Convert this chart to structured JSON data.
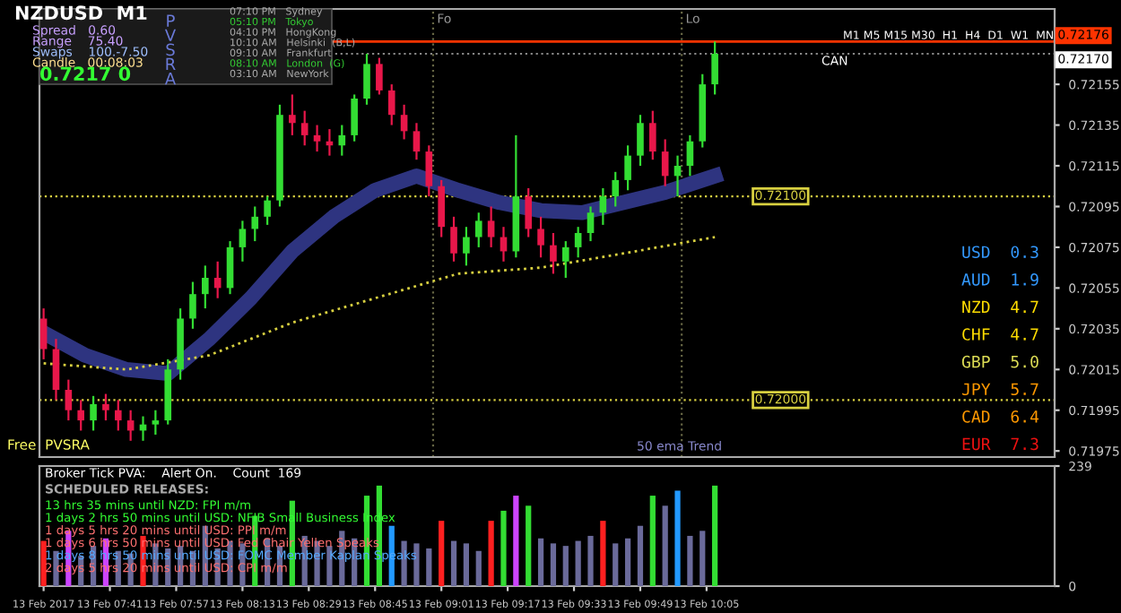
{
  "chart_data": [
    {
      "type": "candlestick",
      "x": [
        "2017-02-13T07:25",
        "2017-02-13T07:28",
        "2017-02-13T07:31",
        "2017-02-13T07:34",
        "2017-02-13T07:37",
        "2017-02-13T07:40",
        "2017-02-13T07:43",
        "2017-02-13T07:46",
        "2017-02-13T07:49",
        "2017-02-13T07:52",
        "2017-02-13T07:55",
        "2017-02-13T07:58",
        "2017-02-13T08:01",
        "2017-02-13T08:04",
        "2017-02-13T08:07",
        "2017-02-13T08:10",
        "2017-02-13T08:13",
        "2017-02-13T08:16",
        "2017-02-13T08:19",
        "2017-02-13T08:22",
        "2017-02-13T08:25",
        "2017-02-13T08:28",
        "2017-02-13T08:31",
        "2017-02-13T08:34",
        "2017-02-13T08:37",
        "2017-02-13T08:40",
        "2017-02-13T08:43",
        "2017-02-13T08:46",
        "2017-02-13T08:49",
        "2017-02-13T08:52",
        "2017-02-13T08:55",
        "2017-02-13T08:58",
        "2017-02-13T09:01",
        "2017-02-13T09:04",
        "2017-02-13T09:07",
        "2017-02-13T09:10",
        "2017-02-13T09:13",
        "2017-02-13T09:16",
        "2017-02-13T09:19",
        "2017-02-13T09:22",
        "2017-02-13T09:25",
        "2017-02-13T09:28",
        "2017-02-13T09:31",
        "2017-02-13T09:34",
        "2017-02-13T09:37",
        "2017-02-13T09:40",
        "2017-02-13T09:43",
        "2017-02-13T09:46",
        "2017-02-13T09:49",
        "2017-02-13T09:52",
        "2017-02-13T09:55",
        "2017-02-13T09:58",
        "2017-02-13T10:01",
        "2017-02-13T10:04",
        "2017-02-13T10:07"
      ],
      "ohlc": [
        [
          0.7204,
          0.72045,
          0.7202,
          0.72025
        ],
        [
          0.72025,
          0.7203,
          0.72,
          0.72005
        ],
        [
          0.72005,
          0.7201,
          0.7199,
          0.71995
        ],
        [
          0.71995,
          0.72,
          0.71985,
          0.7199
        ],
        [
          0.7199,
          0.72002,
          0.71985,
          0.71998
        ],
        [
          0.71998,
          0.72003,
          0.7199,
          0.71995
        ],
        [
          0.71995,
          0.72,
          0.71985,
          0.7199
        ],
        [
          0.7199,
          0.71995,
          0.7198,
          0.71985
        ],
        [
          0.71985,
          0.71992,
          0.7198,
          0.71988
        ],
        [
          0.71988,
          0.71995,
          0.71983,
          0.7199
        ],
        [
          0.7199,
          0.7202,
          0.71988,
          0.72015
        ],
        [
          0.72015,
          0.72045,
          0.7201,
          0.7204
        ],
        [
          0.7204,
          0.72058,
          0.72035,
          0.72052
        ],
        [
          0.72052,
          0.72066,
          0.72045,
          0.7206
        ],
        [
          0.7206,
          0.72068,
          0.7205,
          0.72055
        ],
        [
          0.72055,
          0.72078,
          0.72052,
          0.72075
        ],
        [
          0.72075,
          0.72088,
          0.72068,
          0.72084
        ],
        [
          0.72084,
          0.72095,
          0.72078,
          0.7209
        ],
        [
          0.7209,
          0.721,
          0.72086,
          0.72098
        ],
        [
          0.72098,
          0.72145,
          0.72095,
          0.7214
        ],
        [
          0.7214,
          0.7215,
          0.7213,
          0.72136
        ],
        [
          0.72136,
          0.72142,
          0.72125,
          0.7213
        ],
        [
          0.7213,
          0.72135,
          0.72122,
          0.72127
        ],
        [
          0.72127,
          0.72133,
          0.7212,
          0.72125
        ],
        [
          0.72125,
          0.72135,
          0.7212,
          0.7213
        ],
        [
          0.7213,
          0.7215,
          0.72127,
          0.72148
        ],
        [
          0.72148,
          0.7217,
          0.72145,
          0.72165
        ],
        [
          0.72165,
          0.72168,
          0.7215,
          0.72152
        ],
        [
          0.72152,
          0.72155,
          0.72135,
          0.7214
        ],
        [
          0.7214,
          0.72145,
          0.72128,
          0.72132
        ],
        [
          0.72132,
          0.72136,
          0.72118,
          0.72122
        ],
        [
          0.72122,
          0.72125,
          0.721,
          0.72105
        ],
        [
          0.72105,
          0.72108,
          0.7208,
          0.72085
        ],
        [
          0.72085,
          0.7209,
          0.72068,
          0.72072
        ],
        [
          0.72072,
          0.72085,
          0.72066,
          0.7208
        ],
        [
          0.7208,
          0.72092,
          0.72075,
          0.72088
        ],
        [
          0.72088,
          0.72095,
          0.72075,
          0.7208
        ],
        [
          0.7208,
          0.72085,
          0.72068,
          0.72073
        ],
        [
          0.72073,
          0.7213,
          0.7207,
          0.721
        ],
        [
          0.721,
          0.72104,
          0.7208,
          0.72084
        ],
        [
          0.72084,
          0.7209,
          0.7207,
          0.72076
        ],
        [
          0.72076,
          0.72082,
          0.72062,
          0.72068
        ],
        [
          0.72068,
          0.72078,
          0.7206,
          0.72075
        ],
        [
          0.72075,
          0.72085,
          0.7207,
          0.72082
        ],
        [
          0.72082,
          0.72095,
          0.72078,
          0.72092
        ],
        [
          0.72092,
          0.72104,
          0.72086,
          0.721
        ],
        [
          0.721,
          0.72112,
          0.72095,
          0.72108
        ],
        [
          0.72108,
          0.72125,
          0.72103,
          0.7212
        ],
        [
          0.7212,
          0.7214,
          0.72115,
          0.72136
        ],
        [
          0.72136,
          0.72142,
          0.72118,
          0.72122
        ],
        [
          0.72122,
          0.72128,
          0.72105,
          0.7211
        ],
        [
          0.7211,
          0.7212,
          0.721,
          0.72115
        ],
        [
          0.72115,
          0.7213,
          0.7211,
          0.72127
        ],
        [
          0.72127,
          0.7216,
          0.72124,
          0.72155
        ],
        [
          0.72155,
          0.72176,
          0.7215,
          0.7217
        ]
      ],
      "colors": [
        "#e8174a",
        "#e8174a",
        "#e8174a",
        "#e8174a",
        "#33dd33",
        "#e8174a",
        "#e8174a",
        "#e8174a",
        "#33dd33",
        "#33dd33",
        "#33dd33",
        "#33dd33",
        "#33dd33",
        "#33dd33",
        "#e8174a",
        "#33dd33",
        "#33dd33",
        "#33dd33",
        "#33dd33",
        "#33dd33",
        "#e8174a",
        "#e8174a",
        "#e8174a",
        "#e8174a",
        "#33dd33",
        "#33dd33",
        "#33dd33",
        "#e8174a",
        "#e8174a",
        "#e8174a",
        "#e8174a",
        "#e8174a",
        "#e8174a",
        "#e8174a",
        "#33dd33",
        "#33dd33",
        "#e8174a",
        "#e8174a",
        "#33dd33",
        "#e8174a",
        "#e8174a",
        "#e8174a",
        "#33dd33",
        "#33dd33",
        "#33dd33",
        "#33dd33",
        "#33dd33",
        "#33dd33",
        "#33dd33",
        "#e8174a",
        "#e8174a",
        "#33dd33",
        "#33dd33",
        "#33dd33",
        "#33dd33"
      ],
      "series": [
        {
          "type": "line",
          "color": "#2e3480",
          "x": [
            "2017-02-13T07:25",
            "2017-02-13T07:35",
            "2017-02-13T07:45",
            "2017-02-13T07:55",
            "2017-02-13T08:05",
            "2017-02-13T08:15",
            "2017-02-13T08:25",
            "2017-02-13T08:35",
            "2017-02-13T08:45",
            "2017-02-13T08:55",
            "2017-02-13T09:05",
            "2017-02-13T09:15",
            "2017-02-13T09:25",
            "2017-02-13T09:35",
            "2017-02-13T09:45",
            "2017-02-13T09:55",
            "2017-02-13T10:07"
          ],
          "values": [
            0.72033,
            0.72022,
            0.72015,
            0.72013,
            0.7203,
            0.7205,
            0.72073,
            0.7209,
            0.72103,
            0.7211,
            0.72103,
            0.72097,
            0.72093,
            0.72092,
            0.72097,
            0.72102,
            0.7211
          ],
          "line_style": "solid"
        },
        {
          "type": "line",
          "color": "#d8d040",
          "x": [
            "2017-02-13T07:25",
            "2017-02-13T07:45",
            "2017-02-13T08:05",
            "2017-02-13T08:25",
            "2017-02-13T08:45",
            "2017-02-13T09:05",
            "2017-02-13T09:25",
            "2017-02-13T09:45",
            "2017-02-13T10:07"
          ],
          "values": [
            0.72018,
            0.72015,
            0.72022,
            0.72038,
            0.7205,
            0.72062,
            0.72065,
            0.72072,
            0.7208
          ],
          "line_style": "dotted"
        }
      ],
      "xlim": [
        "2017-02-13T07:24",
        "2017-02-13T11:29"
      ],
      "ylim": [
        0.71972,
        0.72192
      ],
      "yticks": [
        0.72155,
        0.72135,
        0.72115,
        0.72095,
        0.72075,
        0.72055,
        0.72035,
        0.72015,
        0.71995,
        0.71975
      ],
      "tick_labels": "y",
      "grid": false,
      "ref_lines": [
        {
          "axis": "y",
          "value": 0.72176,
          "label": "0.72176",
          "color": "#ff3300",
          "line_style": "solid"
        },
        {
          "axis": "y",
          "value": 0.7217,
          "label": "0.72170",
          "color": "#888888",
          "line_style": "dotted"
        },
        {
          "axis": "y",
          "value": 0.721,
          "label": "0.72100",
          "color": "#d8d040",
          "line_style": "dotted"
        },
        {
          "axis": "y",
          "value": 0.72,
          "label": "0.72000",
          "color": "#d8d040",
          "line_style": "dotted"
        },
        {
          "axis": "x",
          "value": "2017-02-13T08:59",
          "label": "Fo",
          "color": "#666644",
          "line_style": "dotted"
        },
        {
          "axis": "x",
          "value": "2017-02-13T09:59",
          "label": "Lo",
          "color": "#666644",
          "line_style": "dotted"
        }
      ],
      "annotations": [
        "NZDUSD  M1",
        "Spread   0.60",
        "Range    75.40",
        "Swaps    100.-7.50",
        "Candle   00:08:03",
        "0.7217 0",
        "PVSRA",
        "07:10 PM   Sydney",
        "05:10 PM   Tokyo",
        "04:10 PM   HongKong",
        "10:10 AM   Helsinki  (B,L)",
        "09:10 AM   Frankfurt",
        "08:10 AM   London  (G)",
        "03:10 AM   NewYork",
        "M1 M5 M15 M30  H1  H4  D1  W1  MN",
        "CAN",
        "Free  PVSRA",
        "50 ema Trend",
        "USD  0.3",
        "AUD  1.9",
        "NZD  4.7",
        "CHF  4.7",
        "GBP  5.0",
        "JPY  5.7",
        "CAD  6.4",
        "EUR  7.3"
      ]
    },
    {
      "type": "bar",
      "x": [
        "2017-02-13T07:25",
        "2017-02-13T07:28",
        "2017-02-13T07:31",
        "2017-02-13T07:34",
        "2017-02-13T07:37",
        "2017-02-13T07:40",
        "2017-02-13T07:43",
        "2017-02-13T07:46",
        "2017-02-13T07:49",
        "2017-02-13T07:52",
        "2017-02-13T07:55",
        "2017-02-13T07:58",
        "2017-02-13T08:01",
        "2017-02-13T08:04",
        "2017-02-13T08:07",
        "2017-02-13T08:10",
        "2017-02-13T08:13",
        "2017-02-13T08:16",
        "2017-02-13T08:19",
        "2017-02-13T08:22",
        "2017-02-13T08:25",
        "2017-02-13T08:28",
        "2017-02-13T08:31",
        "2017-02-13T08:34",
        "2017-02-13T08:37",
        "2017-02-13T08:40",
        "2017-02-13T08:43",
        "2017-02-13T08:46",
        "2017-02-13T08:49",
        "2017-02-13T08:52",
        "2017-02-13T08:55",
        "2017-02-13T08:58",
        "2017-02-13T09:01",
        "2017-02-13T09:04",
        "2017-02-13T09:07",
        "2017-02-13T09:10",
        "2017-02-13T09:13",
        "2017-02-13T09:16",
        "2017-02-13T09:19",
        "2017-02-13T09:22",
        "2017-02-13T09:25",
        "2017-02-13T09:28",
        "2017-02-13T09:31",
        "2017-02-13T09:34",
        "2017-02-13T09:37",
        "2017-02-13T09:40",
        "2017-02-13T09:43",
        "2017-02-13T09:46",
        "2017-02-13T09:49",
        "2017-02-13T09:52",
        "2017-02-13T09:55",
        "2017-02-13T09:58",
        "2017-02-13T10:01",
        "2017-02-13T10:04",
        "2017-02-13T10:07"
      ],
      "values": [
        90,
        70,
        110,
        60,
        80,
        95,
        70,
        65,
        100,
        85,
        75,
        80,
        70,
        120,
        75,
        90,
        85,
        140,
        95,
        80,
        170,
        100,
        90,
        80,
        110,
        95,
        180,
        200,
        120,
        90,
        85,
        75,
        130,
        90,
        85,
        70,
        130,
        150,
        180,
        160,
        95,
        85,
        80,
        90,
        100,
        130,
        85,
        95,
        120,
        180,
        160,
        190,
        100,
        110,
        200
      ],
      "colors": [
        "#ff2020",
        "#6a6a9a",
        "#cc44ff",
        "#6a6a9a",
        "#6a6a9a",
        "#cc44ff",
        "#6a6a9a",
        "#6a6a9a",
        "#ff2020",
        "#6a6a9a",
        "#6a6a9a",
        "#6a6a9a",
        "#6a6a9a",
        "#6a6a9a",
        "#6a6a9a",
        "#6a6a9a",
        "#6a6a9a",
        "#33dd33",
        "#6a6a9a",
        "#6a6a9a",
        "#33dd33",
        "#6a6a9a",
        "#6a6a9a",
        "#6a6a9a",
        "#6a6a9a",
        "#6a6a9a",
        "#33dd33",
        "#33dd33",
        "#2299ff",
        "#6a6a9a",
        "#6a6a9a",
        "#6a6a9a",
        "#ff2020",
        "#6a6a9a",
        "#6a6a9a",
        "#6a6a9a",
        "#ff2020",
        "#33dd33",
        "#cc44ff",
        "#33dd33",
        "#6a6a9a",
        "#6a6a9a",
        "#6a6a9a",
        "#6a6a9a",
        "#6a6a9a",
        "#ff2020",
        "#6a6a9a",
        "#6a6a9a",
        "#6a6a9a",
        "#33dd33",
        "#6a6a9a",
        "#2299ff",
        "#6a6a9a",
        "#6a6a9a",
        "#33dd33"
      ],
      "xlim": [
        "2017-02-13T07:24",
        "2017-02-13T11:29"
      ],
      "xticks": [
        {
          "value": "2017-02-13T07:25",
          "label": "13 Feb 2017"
        },
        {
          "value": "2017-02-13T07:41",
          "label": "13 Feb 07:41"
        },
        {
          "value": "2017-02-13T07:57",
          "label": "13 Feb 07:57"
        },
        {
          "value": "2017-02-13T08:13",
          "label": "13 Feb 08:13"
        },
        {
          "value": "2017-02-13T08:29",
          "label": "13 Feb 08:29"
        },
        {
          "value": "2017-02-13T08:45",
          "label": "13 Feb 08:45"
        },
        {
          "value": "2017-02-13T09:01",
          "label": "13 Feb 09:01"
        },
        {
          "value": "2017-02-13T09:17",
          "label": "13 Feb 09:17"
        },
        {
          "value": "2017-02-13T09:33",
          "label": "13 Feb 09:33"
        },
        {
          "value": "2017-02-13T09:49",
          "label": "13 Feb 09:49"
        },
        {
          "value": "2017-02-13T10:05",
          "label": "13 Feb 10:05"
        }
      ],
      "ylim": [
        0,
        239
      ],
      "yticks": [
        0,
        239
      ],
      "grid": false,
      "annotations": [
        "Broker Tick PVA:    Alert On.    Count  169",
        "SCHEDULED RELEASES:",
        "13 hrs 35 mins until NZD: FPI m/m",
        "1 days 2 hrs 50 mins until USD: NFIB Small Business Index",
        "1 days 5 hrs 20 mins until USD: PPI m/m",
        "1 days 6 hrs 50 mins until USD: Fed Chair Yellen Speaks",
        "1 days 8 hrs 50 mins until USD: FOMC Member Kaplan Speaks",
        "2 days 5 hrs 20 mins until USD: CPI m/m"
      ]
    }
  ]
}
